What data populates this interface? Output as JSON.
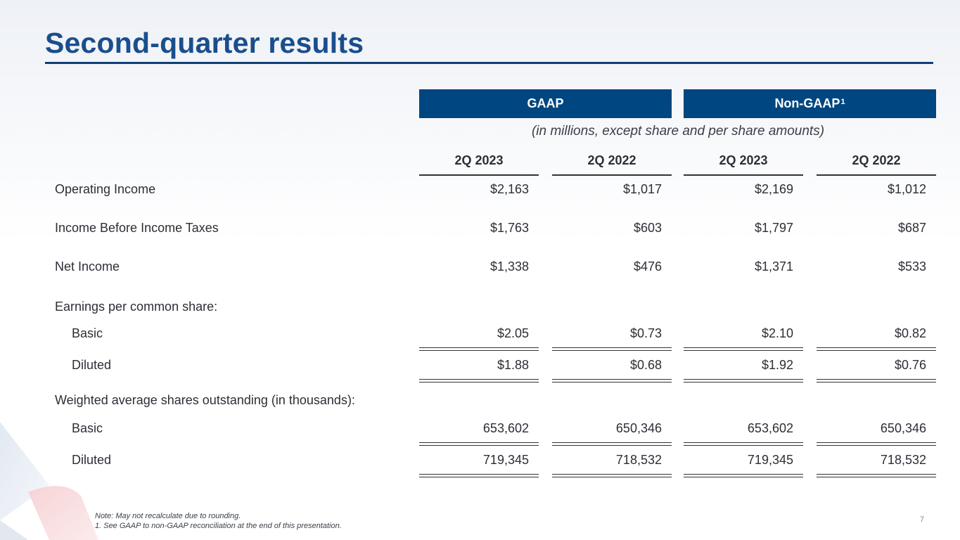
{
  "title": "Second-quarter results",
  "headers": {
    "gaap": "GAAP",
    "non_gaap": "Non-GAAP",
    "non_gaap_sup": "1",
    "units": "(in millions, except share and per share amounts)",
    "periods": [
      "2Q 2023",
      "2Q 2022",
      "2Q 2023",
      "2Q 2022"
    ]
  },
  "rows": {
    "operating_income": {
      "label": "Operating Income",
      "values": [
        "$2,163",
        "$1,017",
        "$2,169",
        "$1,012"
      ]
    },
    "income_before_taxes": {
      "label": "Income Before Income Taxes",
      "values": [
        "$1,763",
        "$603",
        "$1,797",
        "$687"
      ]
    },
    "net_income": {
      "label": "Net Income",
      "values": [
        "$1,338",
        "$476",
        "$1,371",
        "$533"
      ]
    },
    "eps_heading": {
      "label": "Earnings per common share:"
    },
    "eps_basic": {
      "label": "Basic",
      "values": [
        "$2.05",
        "$0.73",
        "$2.10",
        "$0.82"
      ]
    },
    "eps_diluted": {
      "label": "Diluted",
      "values": [
        "$1.88",
        "$0.68",
        "$1.92",
        "$0.76"
      ]
    },
    "shares_heading": {
      "label": "Weighted average shares outstanding (in thousands):"
    },
    "shares_basic": {
      "label": "Basic",
      "values": [
        "653,602",
        "650,346",
        "653,602",
        "650,346"
      ]
    },
    "shares_diluted": {
      "label": "Diluted",
      "values": [
        "719,345",
        "718,532",
        "719,345",
        "718,532"
      ]
    }
  },
  "notes": {
    "line1": "Note:  May not recalculate due to rounding.",
    "line2": "1. See GAAP to non-GAAP reconciliation at the end of this presentation."
  },
  "page_number": "7",
  "colors": {
    "accent": "#004680",
    "title": "#1a4e8c"
  }
}
